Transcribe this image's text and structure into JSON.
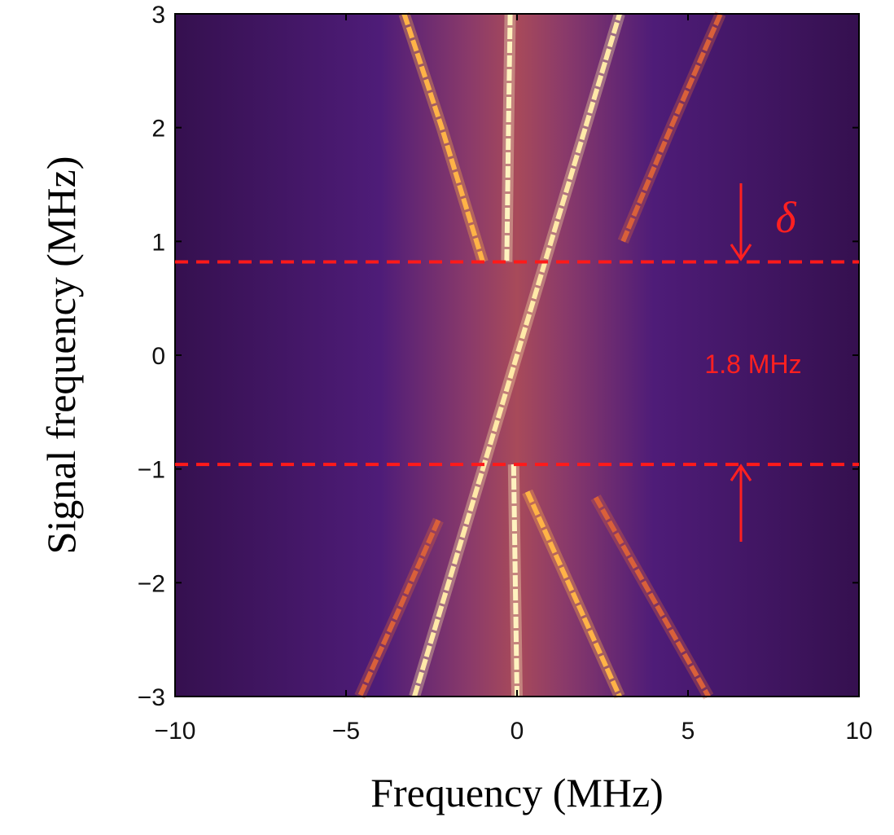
{
  "chart_data": {
    "type": "heatmap",
    "xlabel": "Frequency (MHz)",
    "ylabel": "Signal frequency (MHz)",
    "xlim": [
      -10,
      10
    ],
    "ylim": [
      -3,
      3
    ],
    "xticks": [
      {
        "value": -10,
        "label": "−10"
      },
      {
        "value": -5,
        "label": "−5"
      },
      0,
      5,
      10
    ],
    "yticks": [
      {
        "value": -3,
        "label": "−3"
      },
      {
        "value": -2,
        "label": "−2"
      },
      {
        "value": -1,
        "label": "−1"
      },
      0,
      1,
      2,
      3
    ],
    "hlines": [
      0.82,
      -0.96
    ],
    "hline_color": "#ff1a1a",
    "annotations": [
      "δ",
      "1.8 MHz"
    ],
    "series": [
      {
        "color": "#fff3c0",
        "x": [
          -0.2,
          -0.25,
          -0.3
        ],
        "values": [
          3,
          2,
          0.82
        ]
      },
      {
        "color": "#fff3c0",
        "x": [
          -0.1,
          -0.05,
          0
        ],
        "values": [
          -0.96,
          -2,
          -3
        ]
      },
      {
        "color": "#ffe9a8",
        "x": [
          -3,
          -0.96,
          0.82,
          3
        ],
        "values": [
          -3,
          -0.96,
          0.82,
          3
        ]
      },
      {
        "color": "#ffb347",
        "x": [
          -3.3,
          -2.2,
          -1.0
        ],
        "values": [
          3,
          2,
          0.82
        ]
      },
      {
        "color": "#ffb347",
        "x": [
          0.3,
          1.5,
          3
        ],
        "values": [
          -1.2,
          -2,
          -3
        ]
      },
      {
        "color": "#d9603a",
        "x": [
          3.1,
          4.5,
          5.95
        ],
        "values": [
          1,
          2,
          3
        ]
      },
      {
        "color": "#d9603a",
        "x": [
          -2.3,
          -3.4,
          -4.6
        ],
        "values": [
          -1.45,
          -2.2,
          -3
        ]
      },
      {
        "color": "#d9603a",
        "x": [
          2.3,
          3.9,
          5.6
        ],
        "values": [
          -1.25,
          -2.1,
          -3
        ]
      }
    ]
  }
}
